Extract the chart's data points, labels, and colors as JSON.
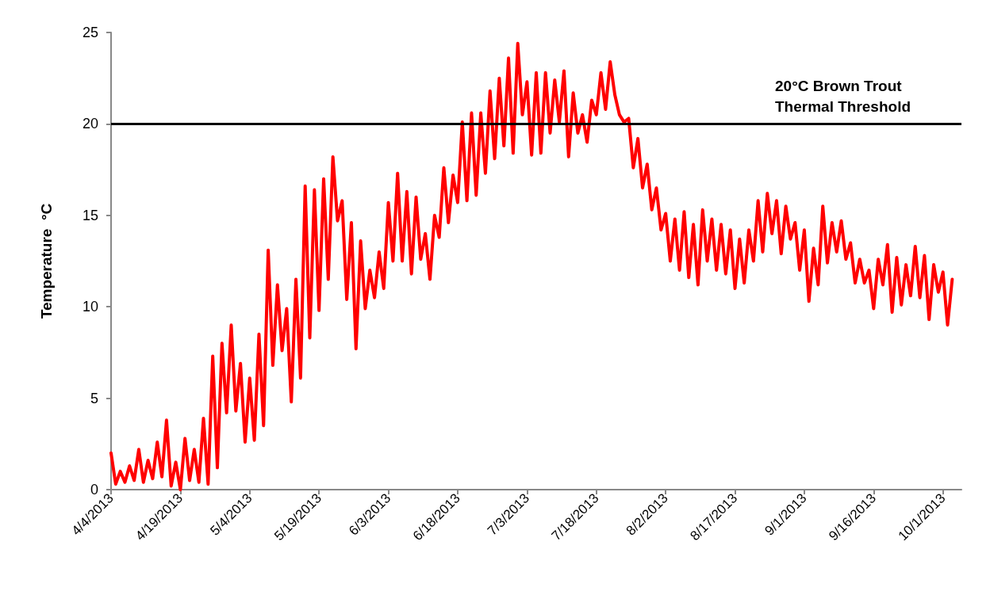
{
  "chart_data": {
    "type": "line",
    "ylabel": "Temperature  °C",
    "x": [
      "2013-04-04",
      "2013-04-05",
      "2013-04-06",
      "2013-04-07",
      "2013-04-08",
      "2013-04-09",
      "2013-04-10",
      "2013-04-11",
      "2013-04-12",
      "2013-04-13",
      "2013-04-14",
      "2013-04-15",
      "2013-04-16",
      "2013-04-17",
      "2013-04-18",
      "2013-04-19",
      "2013-04-20",
      "2013-04-21",
      "2013-04-22",
      "2013-04-23",
      "2013-04-24",
      "2013-04-25",
      "2013-04-26",
      "2013-04-27",
      "2013-04-28",
      "2013-04-29",
      "2013-04-30",
      "2013-05-01",
      "2013-05-02",
      "2013-05-03",
      "2013-05-04",
      "2013-05-05",
      "2013-05-06",
      "2013-05-07",
      "2013-05-08",
      "2013-05-09",
      "2013-05-10",
      "2013-05-11",
      "2013-05-12",
      "2013-05-13",
      "2013-05-14",
      "2013-05-15",
      "2013-05-16",
      "2013-05-17",
      "2013-05-18",
      "2013-05-19",
      "2013-05-20",
      "2013-05-21",
      "2013-05-22",
      "2013-05-23",
      "2013-05-24",
      "2013-05-25",
      "2013-05-26",
      "2013-05-27",
      "2013-05-28",
      "2013-05-29",
      "2013-05-30",
      "2013-05-31",
      "2013-06-01",
      "2013-06-02",
      "2013-06-03",
      "2013-06-04",
      "2013-06-05",
      "2013-06-06",
      "2013-06-07",
      "2013-06-08",
      "2013-06-09",
      "2013-06-10",
      "2013-06-11",
      "2013-06-12",
      "2013-06-13",
      "2013-06-14",
      "2013-06-15",
      "2013-06-16",
      "2013-06-17",
      "2013-06-18",
      "2013-06-19",
      "2013-06-20",
      "2013-06-21",
      "2013-06-22",
      "2013-06-23",
      "2013-06-24",
      "2013-06-25",
      "2013-06-26",
      "2013-06-27",
      "2013-06-28",
      "2013-06-29",
      "2013-06-30",
      "2013-07-01",
      "2013-07-02",
      "2013-07-03",
      "2013-07-04",
      "2013-07-05",
      "2013-07-06",
      "2013-07-07",
      "2013-07-08",
      "2013-07-09",
      "2013-07-10",
      "2013-07-11",
      "2013-07-12",
      "2013-07-13",
      "2013-07-14",
      "2013-07-15",
      "2013-07-16",
      "2013-07-17",
      "2013-07-18",
      "2013-07-19",
      "2013-07-20",
      "2013-07-21",
      "2013-07-22",
      "2013-07-23",
      "2013-07-24",
      "2013-07-25",
      "2013-07-26",
      "2013-07-27",
      "2013-07-28",
      "2013-07-29",
      "2013-07-30",
      "2013-07-31",
      "2013-08-01",
      "2013-08-02",
      "2013-08-03",
      "2013-08-04",
      "2013-08-05",
      "2013-08-06",
      "2013-08-07",
      "2013-08-08",
      "2013-08-09",
      "2013-08-10",
      "2013-08-11",
      "2013-08-12",
      "2013-08-13",
      "2013-08-14",
      "2013-08-15",
      "2013-08-16",
      "2013-08-17",
      "2013-08-18",
      "2013-08-19",
      "2013-08-20",
      "2013-08-21",
      "2013-08-22",
      "2013-08-23",
      "2013-08-24",
      "2013-08-25",
      "2013-08-26",
      "2013-08-27",
      "2013-08-28",
      "2013-08-29",
      "2013-08-30",
      "2013-08-31",
      "2013-09-01",
      "2013-09-02",
      "2013-09-03",
      "2013-09-04",
      "2013-09-05",
      "2013-09-06",
      "2013-09-07",
      "2013-09-08",
      "2013-09-09",
      "2013-09-10",
      "2013-09-11",
      "2013-09-12",
      "2013-09-13",
      "2013-09-14",
      "2013-09-15",
      "2013-09-16",
      "2013-09-17",
      "2013-09-18",
      "2013-09-19",
      "2013-09-20",
      "2013-09-21",
      "2013-09-22",
      "2013-09-23",
      "2013-09-24",
      "2013-09-25",
      "2013-09-26",
      "2013-09-27",
      "2013-09-28",
      "2013-09-29",
      "2013-09-30",
      "2013-10-01",
      "2013-10-02",
      "2013-10-03"
    ],
    "series": [
      {
        "color": "#ff0000",
        "values": [
          2.0,
          0.3,
          1.0,
          0.4,
          1.3,
          0.5,
          2.2,
          0.4,
          1.6,
          0.6,
          2.6,
          0.7,
          3.8,
          0.2,
          1.5,
          0.0,
          2.8,
          0.5,
          2.2,
          0.4,
          3.9,
          0.3,
          7.3,
          1.2,
          8.0,
          4.2,
          9.0,
          4.3,
          6.9,
          2.6,
          6.1,
          2.7,
          8.5,
          3.5,
          13.1,
          6.8,
          11.2,
          7.6,
          9.9,
          4.8,
          11.5,
          6.1,
          16.6,
          8.3,
          16.4,
          9.8,
          17.0,
          11.5,
          18.2,
          14.7,
          15.8,
          10.4,
          14.6,
          7.7,
          13.6,
          9.9,
          12.0,
          10.5,
          13.0,
          11.0,
          15.7,
          12.5,
          17.3,
          12.5,
          16.3,
          11.8,
          16.0,
          12.6,
          14.0,
          11.5,
          15.0,
          13.8,
          17.6,
          14.6,
          17.2,
          15.7,
          20.1,
          15.8,
          20.6,
          16.1,
          20.6,
          17.3,
          21.8,
          18.1,
          22.5,
          18.8,
          23.6,
          18.4,
          24.4,
          20.5,
          22.3,
          18.3,
          22.8,
          18.4,
          22.8,
          19.5,
          22.4,
          20.1,
          22.9,
          18.2,
          21.7,
          19.5,
          20.5,
          19.0,
          21.3,
          20.5,
          22.8,
          20.8,
          23.4,
          21.6,
          20.5,
          20.1,
          20.3,
          17.6,
          19.2,
          16.5,
          17.8,
          15.3,
          16.5,
          14.2,
          15.1,
          12.5,
          14.8,
          12.0,
          15.2,
          11.6,
          14.5,
          11.2,
          15.3,
          12.5,
          14.8,
          12.0,
          14.5,
          11.8,
          14.2,
          11.0,
          13.7,
          11.3,
          14.2,
          12.5,
          15.8,
          13.0,
          16.2,
          14.0,
          15.8,
          12.9,
          15.5,
          13.7,
          14.6,
          12.0,
          14.2,
          10.3,
          13.2,
          11.2,
          15.5,
          12.4,
          14.6,
          13.0,
          14.7,
          12.6,
          13.5,
          11.3,
          12.6,
          11.3,
          12.0,
          9.9,
          12.6,
          11.2,
          13.4,
          9.7,
          12.7,
          10.1,
          12.3,
          10.6,
          13.3,
          10.5,
          12.8,
          9.3,
          12.3,
          10.8,
          11.9,
          9.0,
          11.5
        ]
      }
    ],
    "xlim": [
      "2013-04-04",
      "2013-10-05"
    ],
    "xticks": [
      {
        "value": "2013-04-04",
        "label": "4/4/2013"
      },
      {
        "value": "2013-04-19",
        "label": "4/19/2013"
      },
      {
        "value": "2013-05-04",
        "label": "5/4/2013"
      },
      {
        "value": "2013-05-19",
        "label": "5/19/2013"
      },
      {
        "value": "2013-06-03",
        "label": "6/3/2013"
      },
      {
        "value": "2013-06-18",
        "label": "6/18/2013"
      },
      {
        "value": "2013-07-03",
        "label": "7/3/2013"
      },
      {
        "value": "2013-07-18",
        "label": "7/18/2013"
      },
      {
        "value": "2013-08-02",
        "label": "8/2/2013"
      },
      {
        "value": "2013-08-17",
        "label": "8/17/2013"
      },
      {
        "value": "2013-09-01",
        "label": "9/1/2013"
      },
      {
        "value": "2013-09-16",
        "label": "9/16/2013"
      },
      {
        "value": "2013-10-01",
        "label": "10/1/2013"
      }
    ],
    "ylim": [
      0,
      25
    ],
    "yticks": [
      0,
      5,
      10,
      15,
      20,
      25
    ],
    "ref_lines": [
      {
        "axis": "y",
        "value": 20,
        "label": "20°C Brown Trout Thermal Threshold",
        "color": "#000000"
      }
    ],
    "grid": false,
    "marker": "none",
    "line_style": "solid"
  }
}
